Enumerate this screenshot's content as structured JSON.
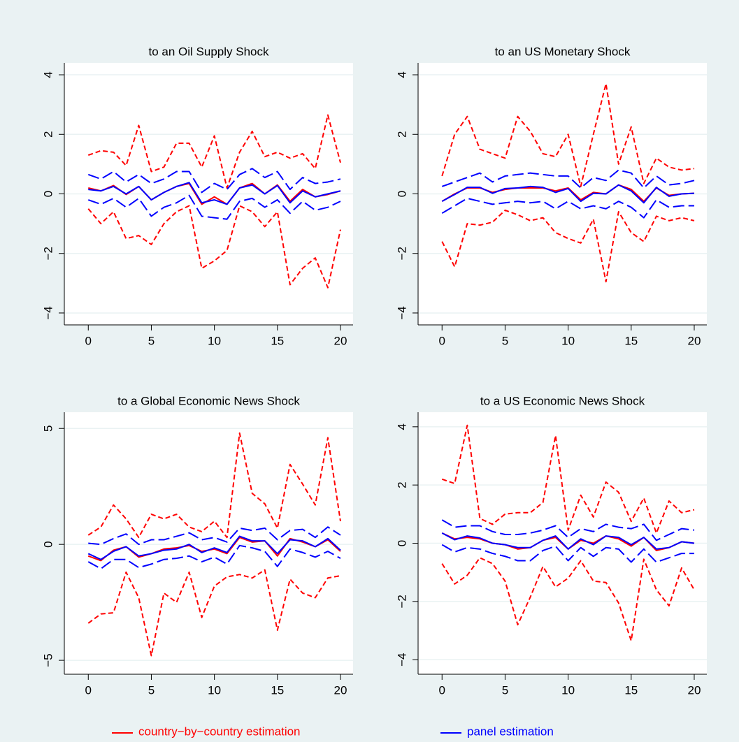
{
  "chart_data": [
    {
      "type": "line",
      "title": "to an Oil Supply Shock",
      "x": [
        0,
        1,
        2,
        3,
        4,
        5,
        6,
        7,
        8,
        9,
        10,
        11,
        12,
        13,
        14,
        15,
        16,
        17,
        18,
        19,
        20
      ],
      "xlim": [
        -1.9,
        21
      ],
      "xticks": [
        0,
        5,
        10,
        15,
        20
      ],
      "ylim": [
        -4.4,
        4.4
      ],
      "yticks": [
        {
          "value": -4,
          "label": "−4"
        },
        {
          "value": -2,
          "label": "−2"
        },
        0,
        2,
        4
      ],
      "grid": true,
      "series": [
        {
          "color": "#ff0000",
          "style": "short-dash",
          "values": [
            1.3,
            1.45,
            1.4,
            0.95,
            2.3,
            0.75,
            0.9,
            1.7,
            1.7,
            0.9,
            1.95,
            0.2,
            1.4,
            2.1,
            1.25,
            1.4,
            1.2,
            1.35,
            0.85,
            2.65,
            1.05
          ]
        },
        {
          "color": "#ff0000",
          "style": "short-dash",
          "values": [
            -0.5,
            -1.0,
            -0.6,
            -1.5,
            -1.4,
            -1.7,
            -1.0,
            -0.6,
            -0.4,
            -2.5,
            -2.25,
            -1.9,
            -0.4,
            -0.6,
            -1.1,
            -0.6,
            -3.05,
            -2.5,
            -2.15,
            -3.15,
            -1.2
          ]
        },
        {
          "color": "#0000ff",
          "style": "long-dash",
          "values": [
            0.65,
            0.5,
            0.75,
            0.4,
            0.65,
            0.35,
            0.5,
            0.75,
            0.75,
            0.05,
            0.35,
            0.15,
            0.65,
            0.85,
            0.55,
            0.75,
            0.15,
            0.55,
            0.35,
            0.4,
            0.5
          ]
        },
        {
          "color": "#0000ff",
          "style": "long-dash",
          "values": [
            -0.2,
            -0.35,
            -0.15,
            -0.45,
            -0.15,
            -0.75,
            -0.45,
            -0.3,
            -0.05,
            -0.75,
            -0.8,
            -0.85,
            -0.25,
            -0.15,
            -0.45,
            -0.2,
            -0.65,
            -0.25,
            -0.55,
            -0.45,
            -0.25
          ]
        },
        {
          "color": "#ff0000",
          "style": "solid",
          "values": [
            0.2,
            0.1,
            0.28,
            -0.02,
            0.25,
            -0.2,
            0.05,
            0.25,
            0.35,
            -0.35,
            -0.1,
            -0.35,
            0.2,
            0.35,
            0.0,
            0.3,
            -0.25,
            0.15,
            -0.1,
            -0.02,
            0.1
          ]
        },
        {
          "color": "#0000ff",
          "style": "solid",
          "values": [
            0.15,
            0.1,
            0.25,
            0.0,
            0.25,
            -0.2,
            0.05,
            0.25,
            0.38,
            -0.3,
            -0.2,
            -0.35,
            0.2,
            0.3,
            0.0,
            0.28,
            -0.3,
            0.1,
            -0.1,
            0.0,
            0.1
          ]
        }
      ]
    },
    {
      "type": "line",
      "title": "to an US Monetary Shock",
      "x": [
        0,
        1,
        2,
        3,
        4,
        5,
        6,
        7,
        8,
        9,
        10,
        11,
        12,
        13,
        14,
        15,
        16,
        17,
        18,
        19,
        20
      ],
      "xlim": [
        -1.9,
        21
      ],
      "xticks": [
        0,
        5,
        10,
        15,
        20
      ],
      "ylim": [
        -4.4,
        4.4
      ],
      "yticks": [
        {
          "value": -4,
          "label": "−4"
        },
        {
          "value": -2,
          "label": "−2"
        },
        0,
        2,
        4
      ],
      "grid": true,
      "series": [
        {
          "color": "#ff0000",
          "style": "short-dash",
          "values": [
            0.6,
            2.0,
            2.6,
            1.5,
            1.35,
            1.2,
            2.6,
            2.1,
            1.35,
            1.25,
            2.0,
            0.25,
            2.0,
            3.7,
            1.0,
            2.25,
            0.35,
            1.2,
            0.9,
            0.8,
            0.85
          ]
        },
        {
          "color": "#ff0000",
          "style": "short-dash",
          "values": [
            -1.6,
            -2.45,
            -1.0,
            -1.05,
            -0.95,
            -0.55,
            -0.7,
            -0.9,
            -0.8,
            -1.3,
            -1.5,
            -1.65,
            -0.85,
            -2.95,
            -0.6,
            -1.3,
            -1.6,
            -0.75,
            -0.9,
            -0.8,
            -0.9
          ]
        },
        {
          "color": "#0000ff",
          "style": "long-dash",
          "values": [
            0.25,
            0.4,
            0.55,
            0.7,
            0.4,
            0.6,
            0.65,
            0.7,
            0.65,
            0.6,
            0.6,
            0.2,
            0.55,
            0.45,
            0.8,
            0.7,
            0.2,
            0.6,
            0.3,
            0.35,
            0.45
          ]
        },
        {
          "color": "#0000ff",
          "style": "long-dash",
          "values": [
            -0.65,
            -0.4,
            -0.15,
            -0.25,
            -0.35,
            -0.3,
            -0.25,
            -0.3,
            -0.25,
            -0.5,
            -0.25,
            -0.5,
            -0.4,
            -0.5,
            -0.25,
            -0.45,
            -0.8,
            -0.2,
            -0.45,
            -0.4,
            -0.4
          ]
        },
        {
          "color": "#ff0000",
          "style": "solid",
          "values": [
            -0.25,
            0.0,
            0.2,
            0.2,
            0.05,
            0.15,
            0.2,
            0.2,
            0.2,
            0.1,
            0.2,
            -0.2,
            0.05,
            0.0,
            0.3,
            0.15,
            -0.25,
            0.2,
            -0.05,
            0.0,
            0.02
          ]
        },
        {
          "color": "#0000ff",
          "style": "solid",
          "values": [
            -0.25,
            -0.02,
            0.22,
            0.22,
            0.02,
            0.18,
            0.2,
            0.25,
            0.22,
            0.05,
            0.18,
            -0.25,
            0.02,
            0.0,
            0.3,
            0.1,
            -0.3,
            0.22,
            -0.08,
            0.0,
            0.02
          ]
        }
      ]
    },
    {
      "type": "line",
      "title": "to a Global Economic News Shock",
      "x": [
        0,
        1,
        2,
        3,
        4,
        5,
        6,
        7,
        8,
        9,
        10,
        11,
        12,
        13,
        14,
        15,
        16,
        17,
        18,
        19,
        20
      ],
      "xlim": [
        -1.9,
        21
      ],
      "xticks": [
        0,
        5,
        10,
        15,
        20
      ],
      "ylim": [
        -5.6,
        5.7
      ],
      "yticks": [
        {
          "value": -5,
          "label": "−5"
        },
        0,
        5
      ],
      "grid": true,
      "series": [
        {
          "color": "#ff0000",
          "style": "short-dash",
          "values": [
            0.4,
            0.75,
            1.7,
            1.1,
            0.3,
            1.3,
            1.1,
            1.3,
            0.75,
            0.55,
            1.0,
            0.3,
            4.8,
            2.2,
            1.75,
            0.7,
            3.45,
            2.6,
            1.7,
            4.6,
            1.0
          ]
        },
        {
          "color": "#ff0000",
          "style": "short-dash",
          "values": [
            -3.4,
            -3.0,
            -2.95,
            -1.2,
            -2.3,
            -4.8,
            -2.1,
            -2.5,
            -1.2,
            -3.15,
            -1.8,
            -1.4,
            -1.3,
            -1.45,
            -1.1,
            -3.7,
            -1.5,
            -2.1,
            -2.3,
            -1.45,
            -1.35
          ]
        },
        {
          "color": "#0000ff",
          "style": "long-dash",
          "values": [
            0.05,
            0.0,
            0.25,
            0.45,
            0.0,
            0.2,
            0.2,
            0.35,
            0.5,
            0.2,
            0.3,
            0.1,
            0.7,
            0.6,
            0.7,
            0.2,
            0.6,
            0.65,
            0.3,
            0.75,
            0.4
          ]
        },
        {
          "color": "#0000ff",
          "style": "long-dash",
          "values": [
            -0.75,
            -1.05,
            -0.65,
            -0.65,
            -1.0,
            -0.85,
            -0.65,
            -0.6,
            -0.5,
            -0.75,
            -0.55,
            -0.85,
            -0.05,
            -0.15,
            -0.3,
            -0.95,
            -0.2,
            -0.35,
            -0.55,
            -0.3,
            -0.6
          ]
        },
        {
          "color": "#ff0000",
          "style": "solid",
          "values": [
            -0.5,
            -0.7,
            -0.25,
            -0.1,
            -0.55,
            -0.4,
            -0.2,
            -0.15,
            -0.05,
            -0.3,
            -0.2,
            -0.4,
            0.3,
            0.1,
            0.15,
            -0.5,
            0.25,
            0.1,
            -0.1,
            0.2,
            -0.3
          ]
        },
        {
          "color": "#0000ff",
          "style": "solid",
          "values": [
            -0.4,
            -0.65,
            -0.3,
            -0.1,
            -0.5,
            -0.4,
            -0.25,
            -0.2,
            0.0,
            -0.35,
            -0.15,
            -0.35,
            0.35,
            0.15,
            0.15,
            -0.4,
            0.2,
            0.15,
            -0.1,
            0.25,
            -0.25
          ]
        }
      ]
    },
    {
      "type": "line",
      "title": "to a US Economic News Shock",
      "x": [
        0,
        1,
        2,
        3,
        4,
        5,
        6,
        7,
        8,
        9,
        10,
        11,
        12,
        13,
        14,
        15,
        16,
        17,
        18,
        19,
        20
      ],
      "xlim": [
        -1.9,
        21
      ],
      "xticks": [
        0,
        5,
        10,
        15,
        20
      ],
      "ylim": [
        -4.5,
        4.5
      ],
      "yticks": [
        {
          "value": -4,
          "label": "−4"
        },
        {
          "value": -2,
          "label": "−2"
        },
        0,
        2,
        4
      ],
      "grid": true,
      "series": [
        {
          "color": "#ff0000",
          "style": "short-dash",
          "values": [
            2.2,
            2.05,
            4.05,
            0.85,
            0.65,
            1.0,
            1.05,
            1.05,
            1.4,
            3.7,
            0.45,
            1.65,
            0.9,
            2.1,
            1.75,
            0.75,
            1.55,
            0.35,
            1.45,
            1.05,
            1.15
          ]
        },
        {
          "color": "#ff0000",
          "style": "short-dash",
          "values": [
            -0.7,
            -1.4,
            -1.1,
            -0.5,
            -0.7,
            -1.3,
            -2.8,
            -1.85,
            -0.8,
            -1.5,
            -1.2,
            -0.6,
            -1.3,
            -1.35,
            -2.05,
            -3.35,
            -0.55,
            -1.6,
            -2.15,
            -0.85,
            -1.6
          ]
        },
        {
          "color": "#0000ff",
          "style": "long-dash",
          "values": [
            0.8,
            0.55,
            0.6,
            0.6,
            0.4,
            0.3,
            0.3,
            0.35,
            0.45,
            0.6,
            0.2,
            0.5,
            0.4,
            0.65,
            0.55,
            0.5,
            0.65,
            0.1,
            0.3,
            0.5,
            0.45
          ]
        },
        {
          "color": "#0000ff",
          "style": "long-dash",
          "values": [
            -0.05,
            -0.3,
            -0.15,
            -0.2,
            -0.35,
            -0.45,
            -0.6,
            -0.6,
            -0.25,
            -0.1,
            -0.6,
            -0.15,
            -0.45,
            -0.15,
            -0.2,
            -0.65,
            -0.2,
            -0.65,
            -0.5,
            -0.35,
            -0.35
          ]
        },
        {
          "color": "#ff0000",
          "style": "solid",
          "values": [
            0.35,
            0.15,
            0.2,
            0.15,
            0.0,
            -0.05,
            -0.2,
            -0.15,
            0.1,
            0.2,
            -0.2,
            0.1,
            0.0,
            0.25,
            0.15,
            -0.1,
            0.2,
            -0.25,
            -0.15,
            0.05,
            0.0
          ]
        },
        {
          "color": "#0000ff",
          "style": "solid",
          "values": [
            0.35,
            0.12,
            0.25,
            0.18,
            0.0,
            -0.05,
            -0.15,
            -0.15,
            0.1,
            0.25,
            -0.2,
            0.15,
            -0.05,
            0.25,
            0.2,
            -0.05,
            0.2,
            -0.2,
            -0.15,
            0.05,
            0.0
          ]
        }
      ]
    }
  ],
  "legend": [
    {
      "name": "country−by−country estimation",
      "color": "#ff0000"
    },
    {
      "name": "panel estimation",
      "color": "#0000ff"
    }
  ]
}
